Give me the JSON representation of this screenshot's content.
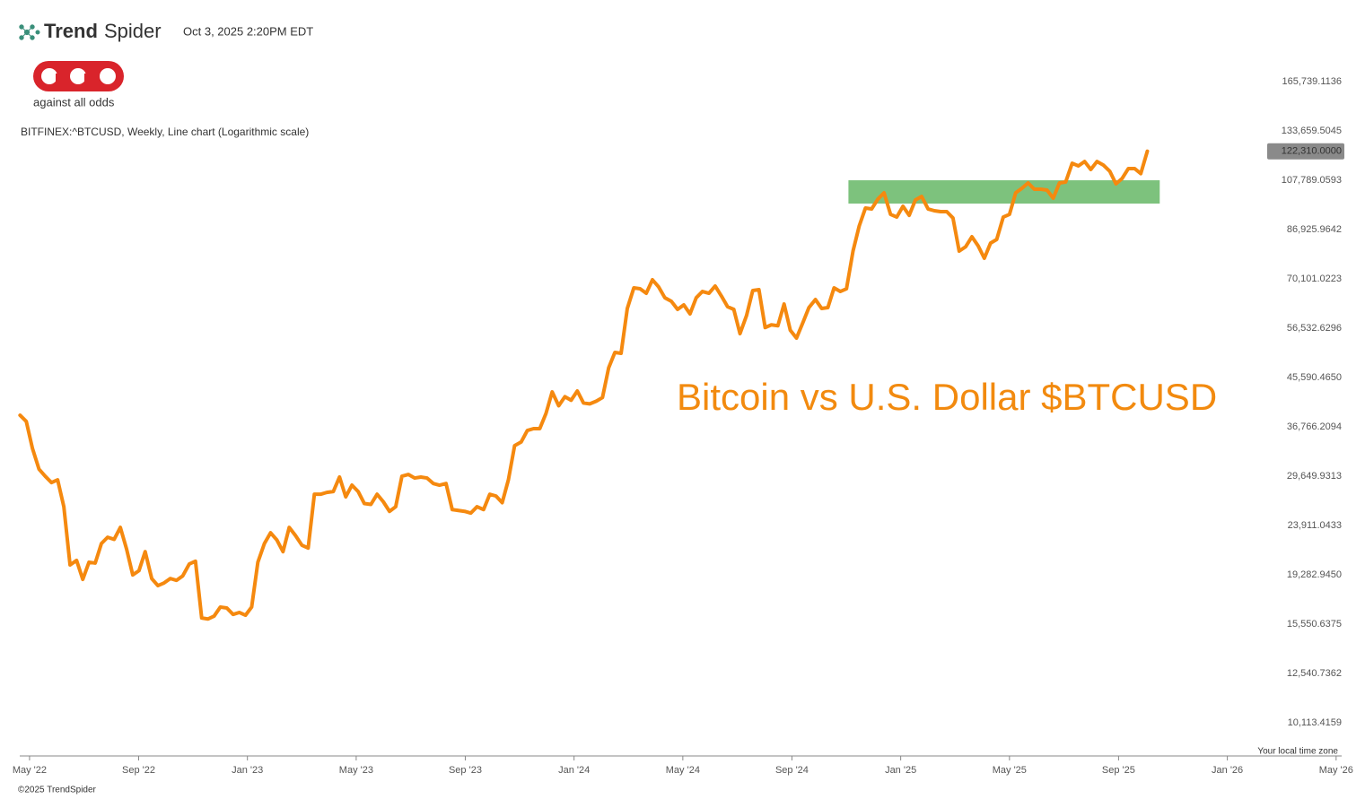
{
  "header": {
    "brand_bold": "Trend",
    "brand_light": "Spider",
    "timestamp": "Oct 3, 2025 2:20PM EDT",
    "logo_text": "against all odds"
  },
  "footer": {
    "copyright": "©2025 TrendSpider",
    "timezone": "Your local time zone"
  },
  "chart_data": {
    "type": "line",
    "subtitle": "BITFINEX:^BTCUSD, Weekly, Line chart (Logarithmic scale)",
    "annotation": "Bitcoin vs U.S. Dollar $BTCUSD",
    "log_scale": true,
    "grid": false,
    "xlim": [
      2022.303,
      2026.35
    ],
    "xticks": [
      {
        "value": 2022.333,
        "label": "May '22"
      },
      {
        "value": 2022.667,
        "label": "Sep '22"
      },
      {
        "value": 2023.0,
        "label": "Jan '23"
      },
      {
        "value": 2023.333,
        "label": "May '23"
      },
      {
        "value": 2023.667,
        "label": "Sep '23"
      },
      {
        "value": 2024.0,
        "label": "Jan '24"
      },
      {
        "value": 2024.333,
        "label": "May '24"
      },
      {
        "value": 2024.667,
        "label": "Sep '24"
      },
      {
        "value": 2025.0,
        "label": "Jan '25"
      },
      {
        "value": 2025.333,
        "label": "May '25"
      },
      {
        "value": 2025.667,
        "label": "Sep '25"
      },
      {
        "value": 2026.0,
        "label": "Jan '26"
      },
      {
        "value": 2026.333,
        "label": "May '26"
      }
    ],
    "ylim": [
      8755,
      176450
    ],
    "yticks": [
      {
        "value": 165739.1136,
        "label": "165,739.1136"
      },
      {
        "value": 133659.5045,
        "label": "133,659.5045"
      },
      {
        "value": 107789.0593,
        "label": "107,789.0593"
      },
      {
        "value": 86925.9642,
        "label": "86,925.9642"
      },
      {
        "value": 70101.0223,
        "label": "70,101.0223"
      },
      {
        "value": 56532.6296,
        "label": "56,532.6296"
      },
      {
        "value": 45590.465,
        "label": "45,590.4650"
      },
      {
        "value": 36766.2094,
        "label": "36,766.2094"
      },
      {
        "value": 29649.9313,
        "label": "29,649.9313"
      },
      {
        "value": 23911.0433,
        "label": "23,911.0433"
      },
      {
        "value": 19282.945,
        "label": "19,282.9450"
      },
      {
        "value": 15550.6375,
        "label": "15,550.6375"
      },
      {
        "value": 12540.7362,
        "label": "12,540.7362"
      },
      {
        "value": 10113.4159,
        "label": "10,113.4159"
      }
    ],
    "zone": {
      "x": [
        2024.84,
        2025.793
      ],
      "y": [
        97370,
        107789
      ],
      "color": "#7dc27d"
    },
    "series": [
      {
        "name": "BTCUSD",
        "color": "#f5890f",
        "price_label": "122,310.0000",
        "x": [
          2022.304,
          2022.323,
          2022.342,
          2022.362,
          2022.381,
          2022.4,
          2022.419,
          2022.438,
          2022.457,
          2022.477,
          2022.496,
          2022.515,
          2022.534,
          2022.553,
          2022.572,
          2022.592,
          2022.611,
          2022.63,
          2022.649,
          2022.668,
          2022.687,
          2022.707,
          2022.726,
          2022.745,
          2022.764,
          2022.783,
          2022.802,
          2022.822,
          2022.841,
          2022.86,
          2022.879,
          2022.898,
          2022.917,
          2022.937,
          2022.956,
          2022.975,
          2022.994,
          2023.013,
          2023.032,
          2023.052,
          2023.071,
          2023.09,
          2023.109,
          2023.128,
          2023.147,
          2023.167,
          2023.186,
          2023.205,
          2023.224,
          2023.243,
          2023.263,
          2023.282,
          2023.301,
          2023.32,
          2023.339,
          2023.358,
          2023.378,
          2023.397,
          2023.416,
          2023.435,
          2023.454,
          2023.473,
          2023.493,
          2023.512,
          2023.531,
          2023.55,
          2023.569,
          2023.588,
          2023.608,
          2023.627,
          2023.646,
          2023.665,
          2023.684,
          2023.703,
          2023.723,
          2023.742,
          2023.761,
          2023.78,
          2023.799,
          2023.818,
          2023.838,
          2023.857,
          2023.876,
          2023.895,
          2023.914,
          2023.933,
          2023.953,
          2023.972,
          2023.991,
          2024.01,
          2024.029,
          2024.048,
          2024.068,
          2024.087,
          2024.106,
          2024.125,
          2024.144,
          2024.163,
          2024.183,
          2024.202,
          2024.221,
          2024.24,
          2024.259,
          2024.278,
          2024.298,
          2024.317,
          2024.336,
          2024.355,
          2024.374,
          2024.393,
          2024.413,
          2024.432,
          2024.451,
          2024.47,
          2024.489,
          2024.508,
          2024.528,
          2024.547,
          2024.566,
          2024.585,
          2024.604,
          2024.624,
          2024.643,
          2024.662,
          2024.681,
          2024.7,
          2024.719,
          2024.739,
          2024.758,
          2024.777,
          2024.796,
          2024.815,
          2024.834,
          2024.854,
          2024.873,
          2024.892,
          2024.911,
          2024.93,
          2024.949,
          2024.969,
          2024.988,
          2025.007,
          2025.026,
          2025.045,
          2025.064,
          2025.084,
          2025.103,
          2025.122,
          2025.141,
          2025.16,
          2025.179,
          2025.199,
          2025.218,
          2025.237,
          2025.256,
          2025.275,
          2025.294,
          2025.314,
          2025.333,
          2025.352,
          2025.371,
          2025.39,
          2025.409,
          2025.429,
          2025.448,
          2025.467,
          2025.486,
          2025.505,
          2025.525,
          2025.544,
          2025.563,
          2025.582,
          2025.601,
          2025.62,
          2025.64,
          2025.659,
          2025.678,
          2025.697,
          2025.716,
          2025.735,
          2025.755
        ],
        "values": [
          38680,
          37660,
          33460,
          30580,
          29650,
          28840,
          29190,
          25960,
          20140,
          20540,
          18910,
          20380,
          20300,
          22110,
          22720,
          22520,
          23720,
          21590,
          19280,
          19640,
          21340,
          18980,
          18400,
          18620,
          18980,
          18830,
          19200,
          20220,
          20470,
          15980,
          15910,
          16110,
          16760,
          16690,
          16230,
          16370,
          16170,
          16760,
          20380,
          22110,
          23170,
          22460,
          21340,
          23720,
          22900,
          21940,
          21680,
          27410,
          27410,
          27630,
          27740,
          29550,
          27100,
          28520,
          27740,
          26320,
          26220,
          27410,
          26530,
          25440,
          25960,
          29650,
          29880,
          29420,
          29540,
          29420,
          28730,
          28520,
          28730,
          25640,
          25540,
          25440,
          25250,
          25960,
          25640,
          27410,
          27200,
          26420,
          29190,
          33880,
          34420,
          36200,
          36490,
          36490,
          38980,
          42830,
          40320,
          41950,
          41300,
          43000,
          40800,
          40650,
          41130,
          41790,
          47580,
          50880,
          50680,
          61620,
          67420,
          67150,
          65850,
          69840,
          67690,
          64570,
          63570,
          61380,
          62590,
          60190,
          64570,
          66370,
          65850,
          67960,
          65080,
          62100,
          61380,
          55220,
          59730,
          66630,
          66890,
          56710,
          57380,
          57160,
          62830,
          56050,
          54160,
          57830,
          61860,
          64070,
          61620,
          61860,
          67420,
          66370,
          67150,
          79140,
          88310,
          95480,
          95110,
          99280,
          102050,
          92890,
          91810,
          96220,
          92520,
          98900,
          100450,
          95110,
          94380,
          94020,
          94020,
          91450,
          79140,
          80680,
          84250,
          80990,
          76710,
          81950,
          83280,
          91810,
          92890,
          102050,
          104070,
          106540,
          103660,
          103660,
          103260,
          99670,
          106540,
          106960,
          116100,
          114770,
          116990,
          113000,
          116990,
          115220,
          112130,
          106130,
          108650,
          113440,
          113440,
          110980,
          122310
        ]
      }
    ]
  }
}
